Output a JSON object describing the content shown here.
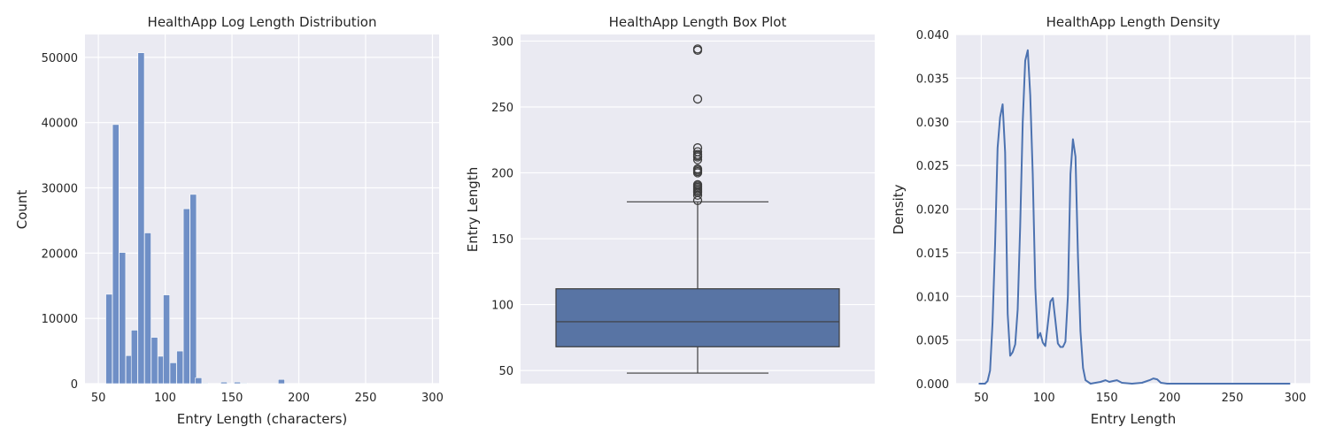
{
  "chart_data": [
    {
      "type": "bar",
      "title": "HealthApp Log Length Distribution",
      "xlabel": "Entry Length (characters)",
      "ylabel": "Count",
      "xlim": [
        40,
        305
      ],
      "ylim": [
        0,
        53500
      ],
      "xticks": [
        50,
        100,
        150,
        200,
        250,
        300
      ],
      "yticks": [
        0,
        10000,
        20000,
        30000,
        40000,
        50000
      ],
      "bin_width": 4.8,
      "bins": [
        {
          "x": 58,
          "count": 13700
        },
        {
          "x": 63,
          "count": 39700
        },
        {
          "x": 68,
          "count": 20100
        },
        {
          "x": 73,
          "count": 4300
        },
        {
          "x": 77,
          "count": 8200
        },
        {
          "x": 82,
          "count": 50700
        },
        {
          "x": 87,
          "count": 23100
        },
        {
          "x": 92,
          "count": 7100
        },
        {
          "x": 97,
          "count": 4200
        },
        {
          "x": 101,
          "count": 13600
        },
        {
          "x": 106,
          "count": 3200
        },
        {
          "x": 111,
          "count": 5000
        },
        {
          "x": 116,
          "count": 26800
        },
        {
          "x": 121,
          "count": 29000
        },
        {
          "x": 125,
          "count": 900
        },
        {
          "x": 130,
          "count": 100
        },
        {
          "x": 144,
          "count": 250
        },
        {
          "x": 154,
          "count": 250
        },
        {
          "x": 159,
          "count": 100
        },
        {
          "x": 187,
          "count": 650
        }
      ],
      "color": "#6f8fc6"
    },
    {
      "type": "box",
      "title": "HealthApp Length Box Plot",
      "ylabel": "Entry Length",
      "ylim": [
        40,
        305
      ],
      "yticks": [
        50,
        100,
        150,
        200,
        250,
        300
      ],
      "whisker_low": 48,
      "q1": 68,
      "median": 87,
      "q3": 112,
      "whisker_high": 178,
      "outliers": [
        179,
        183,
        185,
        186,
        187,
        188,
        189,
        190,
        191,
        200,
        201,
        202,
        203,
        210,
        212,
        213,
        214,
        216,
        219,
        256,
        293,
        294
      ],
      "color": "#5874a4"
    },
    {
      "type": "line",
      "title": "HealthApp Length Density",
      "xlabel": "Entry Length",
      "ylabel": "Density",
      "xlim": [
        30,
        312
      ],
      "ylim": [
        0,
        0.04
      ],
      "xticks": [
        50,
        100,
        150,
        200,
        250,
        300
      ],
      "yticks": [
        0.0,
        0.005,
        0.01,
        0.015,
        0.02,
        0.025,
        0.03,
        0.035,
        0.04
      ],
      "ytick_labels": [
        "0.000",
        "0.005",
        "0.010",
        "0.015",
        "0.020",
        "0.025",
        "0.030",
        "0.035",
        "0.040"
      ],
      "x": [
        48,
        53,
        55,
        57,
        59,
        61,
        63,
        65,
        67,
        69,
        71,
        73,
        75,
        77,
        79,
        81,
        83,
        85,
        87,
        89,
        91,
        93,
        95,
        97,
        99,
        101,
        103,
        105,
        107,
        109,
        111,
        113,
        115,
        117,
        119,
        121,
        123,
        125,
        127,
        129,
        131,
        133,
        137,
        141,
        145,
        149,
        152,
        155,
        158,
        162,
        170,
        178,
        184,
        187,
        190,
        193,
        198,
        210,
        250,
        296
      ],
      "y": [
        0.0,
        0.0,
        0.0003,
        0.0015,
        0.007,
        0.016,
        0.027,
        0.0305,
        0.032,
        0.0265,
        0.008,
        0.0032,
        0.0036,
        0.0045,
        0.0085,
        0.018,
        0.03,
        0.037,
        0.0382,
        0.033,
        0.024,
        0.011,
        0.0052,
        0.0058,
        0.0047,
        0.0043,
        0.0068,
        0.0094,
        0.0098,
        0.0072,
        0.0046,
        0.0042,
        0.0042,
        0.0048,
        0.01,
        0.024,
        0.028,
        0.026,
        0.0145,
        0.006,
        0.0018,
        0.0004,
        0.0,
        0.0001,
        0.0002,
        0.0004,
        0.0002,
        0.0003,
        0.0004,
        0.0001,
        0.0,
        0.0001,
        0.0004,
        0.0006,
        0.0005,
        0.0001,
        0.0,
        0.0,
        0.0,
        0.0
      ],
      "color": "#4c72b0"
    }
  ]
}
